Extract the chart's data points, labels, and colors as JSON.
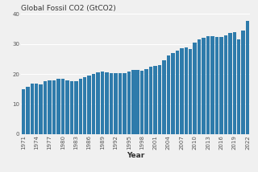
{
  "title": "Global Fossil CO2 (GtCO2)",
  "xlabel": "Year",
  "bar_color": "#2e7bab",
  "background_color": "#f0f0f0",
  "plot_bg_color": "#f0f0f0",
  "years": [
    1971,
    1972,
    1973,
    1974,
    1975,
    1976,
    1977,
    1978,
    1979,
    1980,
    1981,
    1982,
    1983,
    1984,
    1985,
    1986,
    1987,
    1988,
    1989,
    1990,
    1991,
    1992,
    1993,
    1994,
    1995,
    1996,
    1997,
    1998,
    1999,
    2000,
    2001,
    2002,
    2003,
    2004,
    2005,
    2006,
    2007,
    2008,
    2009,
    2010,
    2011,
    2012,
    2013,
    2014,
    2015,
    2016,
    2017,
    2018,
    2019,
    2020,
    2021,
    2022
  ],
  "values": [
    14.8,
    15.6,
    16.9,
    16.7,
    16.5,
    17.5,
    17.8,
    17.9,
    18.5,
    18.3,
    17.8,
    17.7,
    17.6,
    18.5,
    18.9,
    19.6,
    20.0,
    20.6,
    20.8,
    20.5,
    20.2,
    20.3,
    20.2,
    20.4,
    20.8,
    21.4,
    21.4,
    21.2,
    21.5,
    22.5,
    22.7,
    22.9,
    24.5,
    26.1,
    26.9,
    27.8,
    28.5,
    28.9,
    28.3,
    30.3,
    31.5,
    32.1,
    32.5,
    32.5,
    32.3,
    32.4,
    32.8,
    33.6,
    33.8,
    31.5,
    34.3,
    37.5
  ],
  "ylim": [
    0,
    40
  ],
  "yticks": [
    0,
    10,
    20,
    30,
    40
  ],
  "xtick_years": [
    1971,
    1974,
    1977,
    1980,
    1983,
    1986,
    1989,
    1992,
    1995,
    1998,
    2001,
    2004,
    2007,
    2010,
    2013,
    2016,
    2019,
    2022
  ],
  "title_fontsize": 6.5,
  "tick_fontsize": 5,
  "xlabel_fontsize": 6.5,
  "grid_color": "#ffffff",
  "grid_linewidth": 0.8
}
